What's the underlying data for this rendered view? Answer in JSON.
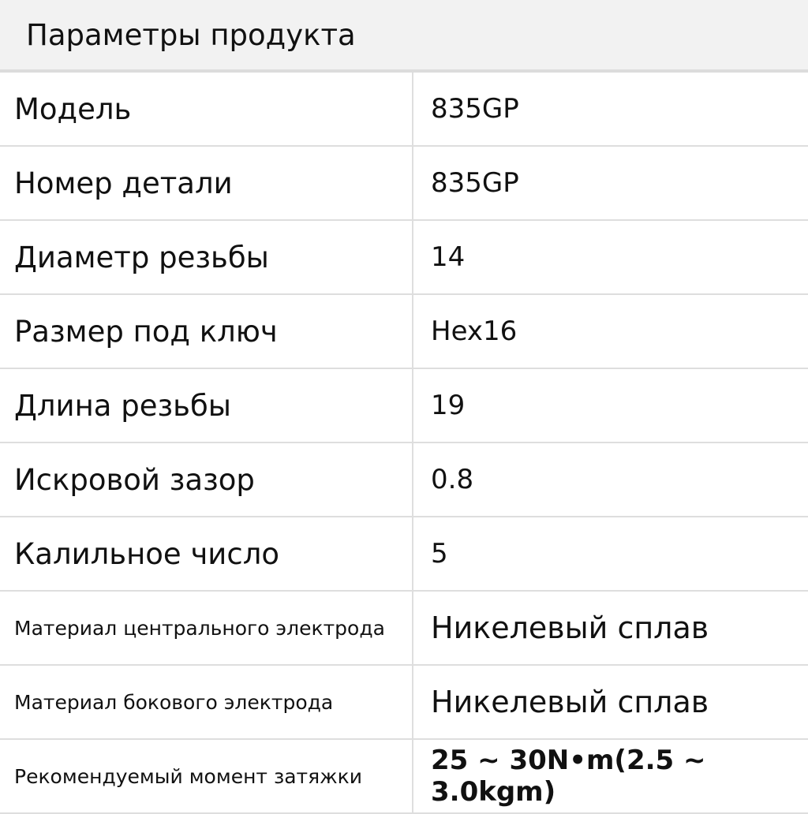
{
  "title": "Параметры продукта",
  "rows": [
    {
      "label": "Модель",
      "value": "835GP"
    },
    {
      "label": "Номер детали",
      "value": "835GP"
    },
    {
      "label": "Диаметр резьбы",
      "value": "14"
    },
    {
      "label": "Размер под ключ",
      "value": "Hex16"
    },
    {
      "label": "Длина резьбы",
      "value": "19"
    },
    {
      "label": "Искровой зазор",
      "value": "0.8"
    },
    {
      "label": "Калильное число",
      "value": "5"
    },
    {
      "label": "Материал центрального электрода",
      "value": "Никелевый сплав"
    },
    {
      "label": "Материал бокового электрода",
      "value": "Никелевый сплав"
    },
    {
      "label": "Рекомендуемый момент затяжки",
      "value": "25 ~ 30N•m(2.5 ~ 3.0kgm)"
    }
  ]
}
